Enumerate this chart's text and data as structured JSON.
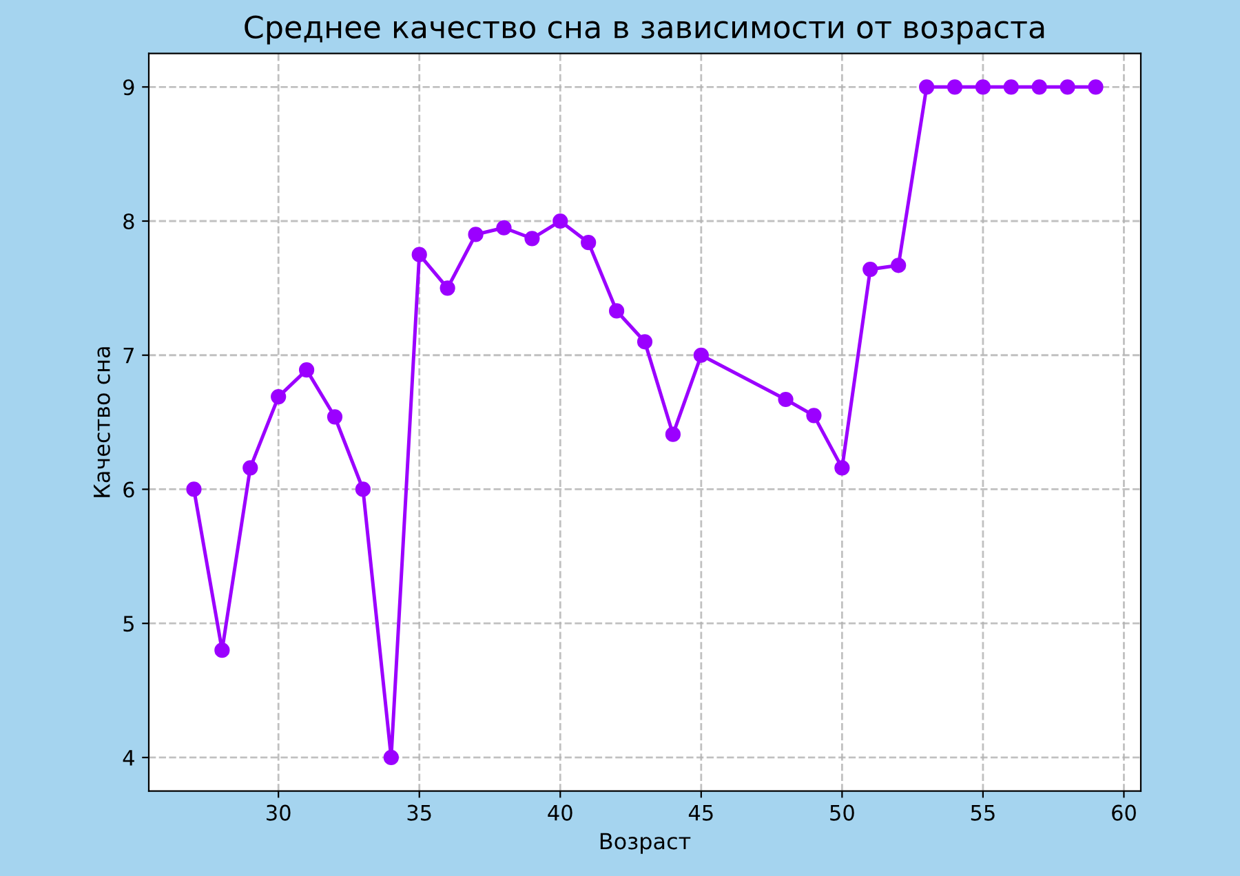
{
  "chart_data": {
    "type": "line",
    "title": "Среднее качество сна в зависимости от возраста",
    "xlabel": "Возраст",
    "ylabel": "Качество сна",
    "x": [
      27,
      28,
      29,
      30,
      31,
      32,
      33,
      34,
      35,
      36,
      37,
      38,
      39,
      40,
      41,
      42,
      43,
      44,
      45,
      48,
      49,
      50,
      51,
      52,
      53,
      54,
      55,
      56,
      57,
      58,
      59
    ],
    "series": [
      {
        "color": "#9b00ff",
        "values": [
          6.0,
          4.8,
          6.16,
          6.69,
          6.89,
          6.54,
          6.0,
          4.0,
          7.75,
          7.5,
          7.9,
          7.95,
          7.87,
          8.0,
          7.84,
          7.33,
          7.1,
          6.41,
          7.0,
          6.67,
          6.55,
          6.16,
          7.64,
          7.67,
          9.0,
          9.0,
          9.0,
          9.0,
          9.0,
          9.0,
          9.0
        ]
      }
    ],
    "xlim": [
      25.4,
      60.6
    ],
    "ylim": [
      3.75,
      9.25
    ],
    "xticks": [
      30,
      35,
      40,
      45,
      50,
      55,
      60
    ],
    "yticks": [
      4,
      5,
      6,
      7,
      8,
      9
    ],
    "grid": true,
    "marker": "circle",
    "line_style": "solid"
  }
}
